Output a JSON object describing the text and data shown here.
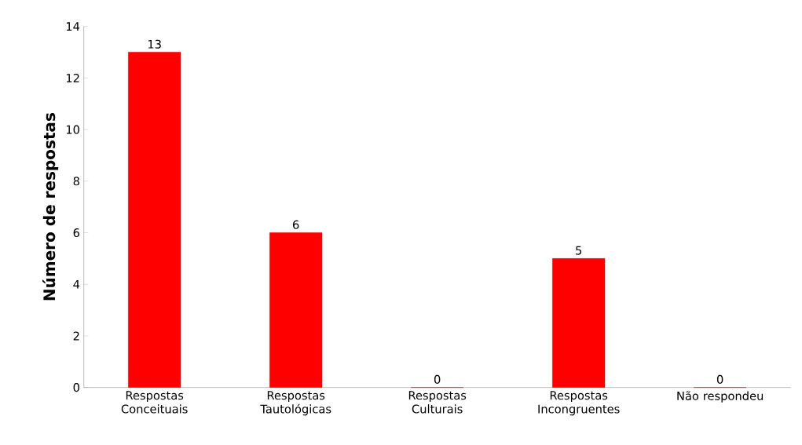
{
  "chart_data": {
    "type": "bar",
    "ylabel": "Número de respostas",
    "categories": [
      "Respostas Conceituais",
      "Respostas Tautológicas",
      "Respostas Culturais",
      "Respostas Incongruentes",
      "Não respondeu"
    ],
    "values": [
      13,
      6,
      0,
      5,
      0
    ],
    "color": "#ff0000",
    "ylim": [
      0,
      14
    ],
    "yticks": [
      0,
      2,
      4,
      6,
      8,
      10,
      12,
      14
    ],
    "data_labels": true
  }
}
